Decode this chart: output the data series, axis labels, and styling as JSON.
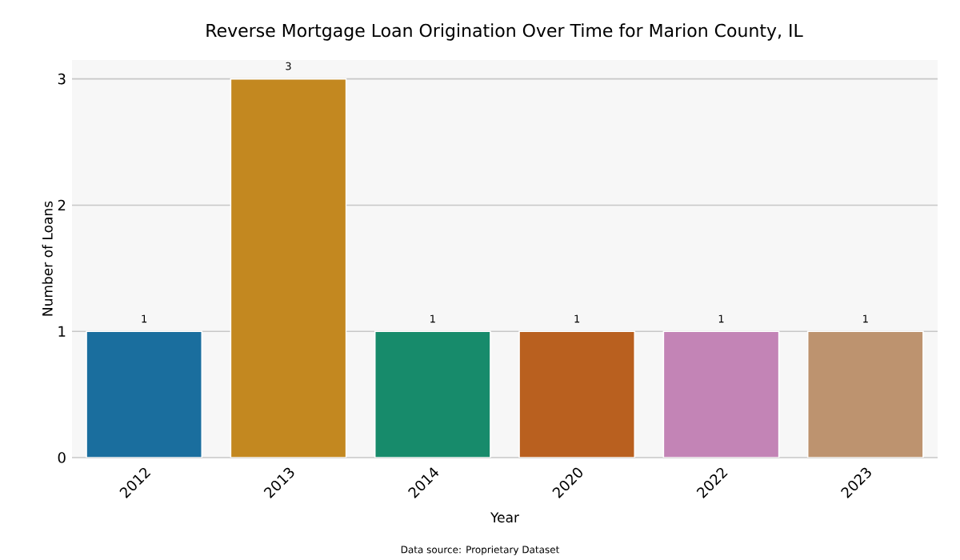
{
  "chart_data": {
    "type": "bar",
    "title": "Reverse Mortgage Loan Origination Over Time for Marion County, IL",
    "xlabel": "Year",
    "ylabel": "Number of Loans",
    "categories": [
      "2012",
      "2013",
      "2014",
      "2020",
      "2022",
      "2023"
    ],
    "values": [
      1,
      3,
      1,
      1,
      1,
      1
    ],
    "colors": [
      "#1a6e9e",
      "#c38820",
      "#178b6b",
      "#b9601f",
      "#c384b6",
      "#bd936f"
    ],
    "ylim": [
      0,
      3.15
    ],
    "yticks": [
      0,
      1,
      2,
      3
    ],
    "grid": "y",
    "data_labels": true,
    "annotations": [
      "Data source: Proprietary Dataset"
    ]
  }
}
